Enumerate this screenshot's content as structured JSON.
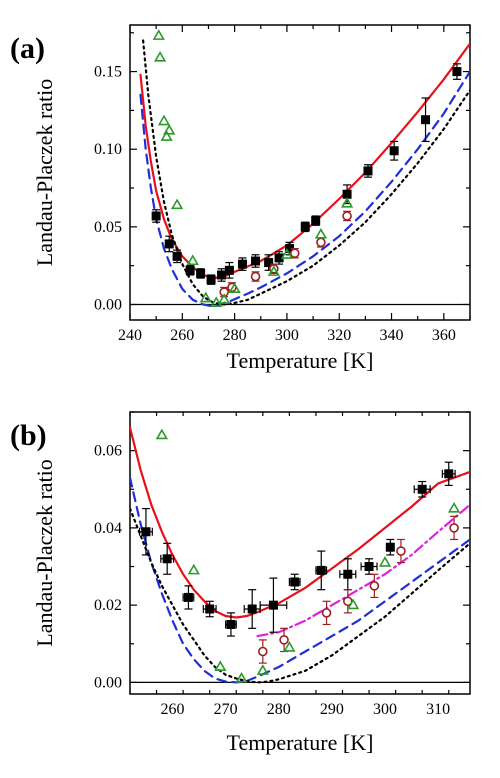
{
  "chart_data": [
    {
      "type": "scatter",
      "panel_label": "(a)",
      "xlabel": "Temperature [K]",
      "ylabel": "Landau-Placzek ratio",
      "xlim": [
        240,
        370
      ],
      "ylim": [
        -0.01,
        0.18
      ],
      "xticks": [
        240,
        260,
        280,
        300,
        320,
        340,
        360
      ],
      "yticks": [
        0.0,
        0.05,
        0.1,
        0.15
      ],
      "ytick_labels": [
        "0.00",
        "0.05",
        "0.10",
        "0.15"
      ],
      "zero_line": true,
      "colors": {
        "red": "#e8101a",
        "blue": "#1f2fd6",
        "green": "#2a9a2a",
        "brown": "#9a2020",
        "magenta": "#e020e0",
        "black": "#000000"
      },
      "series": [
        {
          "marker": "filled-square",
          "color": "#000000",
          "x": [
            250,
            255,
            258,
            263,
            267,
            271,
            275,
            278,
            283,
            288,
            293,
            297,
            301,
            307,
            311,
            323,
            331,
            341,
            353,
            365
          ],
          "y": [
            0.057,
            0.039,
            0.031,
            0.022,
            0.02,
            0.016,
            0.019,
            0.022,
            0.026,
            0.028,
            0.027,
            0.03,
            0.036,
            0.05,
            0.054,
            0.071,
            0.086,
            0.099,
            0.119,
            0.15
          ],
          "yerr": [
            0.004,
            0.005,
            0.004,
            0.003,
            0.003,
            0.003,
            0.004,
            0.005,
            0.004,
            0.004,
            0.005,
            0.004,
            0.004,
            0.003,
            0.003,
            0.006,
            0.004,
            0.006,
            0.014,
            0.005
          ]
        },
        {
          "marker": "open-circle",
          "color": "#9a2020",
          "x": [
            276,
            279,
            288,
            295,
            303,
            313,
            323
          ],
          "y": [
            0.008,
            0.011,
            0.018,
            0.023,
            0.033,
            0.04,
            0.057
          ],
          "yerr": [
            0.003,
            0.003,
            0.003,
            0.003,
            0.003,
            0.003,
            0.003
          ]
        },
        {
          "marker": "open-triangle",
          "color": "#2a9a2a",
          "x": [
            251,
            251.5,
            253,
            254,
            255,
            258,
            264,
            269,
            273,
            276,
            280,
            295,
            300,
            313,
            323
          ],
          "y": [
            0.173,
            0.159,
            0.118,
            0.108,
            0.112,
            0.064,
            0.028,
            0.004,
            0.001,
            0.003,
            0.01,
            0.021,
            0.032,
            0.045,
            0.065
          ]
        },
        {
          "line": "solid",
          "color": "#e8101a",
          "x": [
            244,
            246,
            248,
            250,
            253,
            256,
            260,
            264,
            268,
            272,
            276,
            280,
            290,
            300,
            310,
            320,
            330,
            340,
            350,
            360,
            370
          ],
          "y": [
            0.148,
            0.115,
            0.092,
            0.073,
            0.055,
            0.042,
            0.031,
            0.024,
            0.019,
            0.017,
            0.018,
            0.021,
            0.028,
            0.038,
            0.052,
            0.068,
            0.085,
            0.104,
            0.124,
            0.145,
            0.168
          ]
        },
        {
          "line": "dashed",
          "color": "#1f2fd6",
          "x": [
            244,
            246,
            248,
            250,
            253,
            256,
            260,
            264,
            268,
            271,
            274,
            278,
            285,
            290,
            300,
            310,
            320,
            330,
            340,
            350,
            360,
            370
          ],
          "y": [
            0.135,
            0.1,
            0.075,
            0.055,
            0.036,
            0.023,
            0.01,
            0.003,
            0.0,
            -0.001,
            0.0,
            0.002,
            0.007,
            0.011,
            0.02,
            0.031,
            0.044,
            0.06,
            0.079,
            0.1,
            0.123,
            0.15
          ]
        },
        {
          "line": "dotted",
          "color": "#000000",
          "x": [
            245,
            247,
            250,
            253,
            256,
            260,
            264,
            268,
            272,
            276,
            280,
            285,
            290,
            300,
            310,
            320,
            330,
            340,
            350,
            360,
            370
          ],
          "y": [
            0.17,
            0.135,
            0.095,
            0.066,
            0.045,
            0.026,
            0.013,
            0.005,
            0.001,
            0.0,
            0.001,
            0.003,
            0.007,
            0.015,
            0.025,
            0.038,
            0.053,
            0.071,
            0.091,
            0.113,
            0.138
          ]
        }
      ]
    },
    {
      "type": "scatter",
      "panel_label": "(b)",
      "xlabel": "Temperature [K]",
      "ylabel": "Landau-Placzek ratio",
      "xlim": [
        252,
        316
      ],
      "ylim": [
        -0.003,
        0.07
      ],
      "xticks": [
        260,
        270,
        280,
        290,
        300,
        310
      ],
      "yticks": [
        0.0,
        0.02,
        0.04,
        0.06
      ],
      "ytick_labels": [
        "0.00",
        "0.02",
        "0.04",
        "0.06"
      ],
      "zero_line": true,
      "series": [
        {
          "marker": "filled-square",
          "color": "#000000",
          "x": [
            255,
            259,
            263,
            267,
            271,
            275,
            279,
            283,
            288,
            293,
            297,
            301,
            307,
            312
          ],
          "y": [
            0.039,
            0.032,
            0.022,
            0.019,
            0.015,
            0.019,
            0.02,
            0.026,
            0.029,
            0.028,
            0.03,
            0.035,
            0.05,
            0.054
          ],
          "yerr": [
            0.006,
            0.004,
            0.003,
            0.002,
            0.003,
            0.005,
            0.007,
            0.002,
            0.005,
            0.004,
            0.002,
            0.002,
            0.002,
            0.003
          ],
          "xerr": [
            1.2,
            1.2,
            1.0,
            1.2,
            1.0,
            1.5,
            2.5,
            1.0,
            1.0,
            1.5,
            1.5,
            0.5,
            1.5,
            1.2
          ]
        },
        {
          "marker": "open-circle",
          "color": "#9a2020",
          "x": [
            277,
            281,
            289,
            293,
            298,
            303,
            313
          ],
          "y": [
            0.008,
            0.011,
            0.018,
            0.021,
            0.025,
            0.034,
            0.04
          ],
          "yerr": [
            0.003,
            0.003,
            0.003,
            0.003,
            0.003,
            0.003,
            0.003
          ]
        },
        {
          "marker": "open-triangle",
          "color": "#2a9a2a",
          "x": [
            258,
            264,
            269,
            273,
            277,
            282,
            294,
            300,
            313
          ],
          "y": [
            0.064,
            0.029,
            0.004,
            0.001,
            0.003,
            0.009,
            0.02,
            0.031,
            0.045
          ]
        },
        {
          "line": "solid",
          "color": "#e8101a",
          "x": [
            252,
            254,
            256,
            258,
            260,
            262,
            264,
            266,
            268,
            270,
            272,
            274,
            276,
            280,
            285,
            290,
            295,
            300,
            305,
            310,
            316
          ],
          "y": [
            0.066,
            0.055,
            0.046,
            0.039,
            0.033,
            0.028,
            0.024,
            0.021,
            0.0185,
            0.0172,
            0.0168,
            0.0172,
            0.0182,
            0.0205,
            0.0245,
            0.0295,
            0.0345,
            0.04,
            0.0455,
            0.0515,
            0.0545
          ]
        },
        {
          "line": "dashed",
          "color": "#1f2fd6",
          "x": [
            252,
            254,
            256,
            258,
            260,
            262,
            264,
            266,
            268,
            270,
            272,
            274,
            276,
            280,
            285,
            290,
            295,
            300,
            305,
            310,
            316
          ],
          "y": [
            0.053,
            0.041,
            0.031,
            0.023,
            0.016,
            0.01,
            0.006,
            0.003,
            0.001,
            0.0002,
            0.0,
            0.0004,
            0.0015,
            0.004,
            0.008,
            0.012,
            0.016,
            0.021,
            0.026,
            0.031,
            0.037
          ]
        },
        {
          "line": "dotted",
          "color": "#000000",
          "x": [
            252,
            254,
            256,
            258,
            260,
            262,
            264,
            266,
            268,
            270,
            272,
            274,
            276,
            278,
            280,
            285,
            290,
            295,
            300,
            305,
            310,
            316
          ],
          "y": [
            0.045,
            0.038,
            0.031,
            0.025,
            0.02,
            0.015,
            0.011,
            0.007,
            0.004,
            0.002,
            0.001,
            0.0003,
            0.0,
            0.0002,
            0.0008,
            0.003,
            0.007,
            0.012,
            0.017,
            0.023,
            0.029,
            0.036
          ]
        },
        {
          "line": "dashdot",
          "color": "#e020e0",
          "x": [
            276,
            280,
            285,
            290,
            295,
            300,
            305,
            310,
            316
          ],
          "y": [
            0.012,
            0.013,
            0.016,
            0.02,
            0.024,
            0.028,
            0.033,
            0.039,
            0.046
          ]
        }
      ]
    }
  ]
}
